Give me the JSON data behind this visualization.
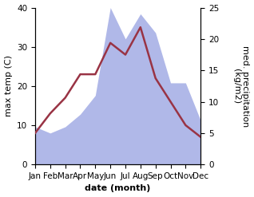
{
  "months": [
    "Jan",
    "Feb",
    "Mar",
    "Apr",
    "May",
    "Jun",
    "Jul",
    "Aug",
    "Sep",
    "Oct",
    "Nov",
    "Dec"
  ],
  "temperature": [
    8,
    13,
    17,
    23,
    23,
    31,
    28,
    35,
    22,
    16,
    10,
    7
  ],
  "precipitation": [
    6,
    5,
    6,
    8,
    11,
    25,
    20,
    24,
    21,
    13,
    13,
    7
  ],
  "temp_color": "#993344",
  "precip_color": "#b0b8e8",
  "ylabel_left": "max temp (C)",
  "ylabel_right": "med. precipitation\n(kg/m2)",
  "xlabel": "date (month)",
  "ylim_left": [
    0,
    40
  ],
  "ylim_right": [
    0,
    25
  ],
  "yticks_left": [
    0,
    10,
    20,
    30,
    40
  ],
  "yticks_right": [
    0,
    5,
    10,
    15,
    20,
    25
  ],
  "background_color": "#ffffff",
  "label_fontsize": 8,
  "tick_fontsize": 7.5
}
